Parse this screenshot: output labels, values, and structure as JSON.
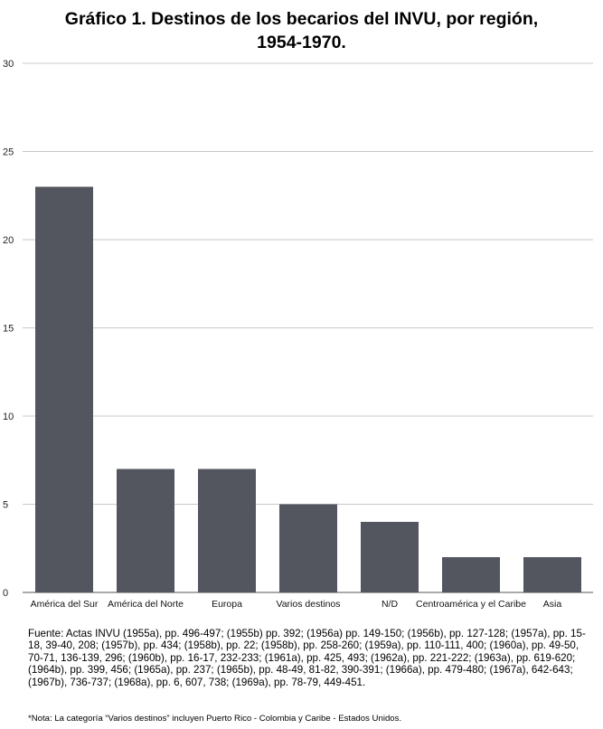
{
  "chart_data": {
    "type": "bar",
    "title_line1": "Gráfico 1. Destinos de los becarios del INVU, por región,",
    "title_line2": "1954-1970.",
    "categories": [
      "América del Sur",
      "América del Norte",
      "Europa",
      "Varios destinos",
      "N/D",
      "Centroamérica y el Caribe",
      "Asia"
    ],
    "values": [
      23,
      7,
      7,
      5,
      4,
      2,
      2
    ],
    "ylim": [
      0,
      30
    ],
    "yticks": [
      0,
      5,
      10,
      15,
      20,
      25,
      30
    ],
    "grid": true,
    "bar_color": "#53565e",
    "grid_color": "#c8c8c8"
  },
  "source_text": "Fuente: Actas INVU (1955a), pp. 496-497; (1955b) pp. 392; (1956a) pp. 149-150; (1956b), pp. 127-128; (1957a), pp. 15-18, 39-40, 208; (1957b), pp. 434; (1958b), pp. 22; (1958b), pp. 258-260; (1959a), pp. 110-111, 400; (1960a), pp. 49-50, 70-71, 136-139, 296; (1960b), pp. 16-17, 232-233; (1961a), pp. 425, 493; (1962a), pp. 221-222; (1963a), pp. 619-620; (1964b), pp. 399, 456; (1965a), pp. 237; (1965b), pp. 48-49, 81-82, 390-391; (1966a), pp. 479-480; (1967a), 642-643; (1967b), 736-737; (1968a), pp. 6, 607, 738; (1969a), pp. 78-79, 449-451.",
  "note_text": "*Nota: La categoría “Varios destinos” incluyen Puerto Rico - Colombia y Caribe - Estados Unidos."
}
